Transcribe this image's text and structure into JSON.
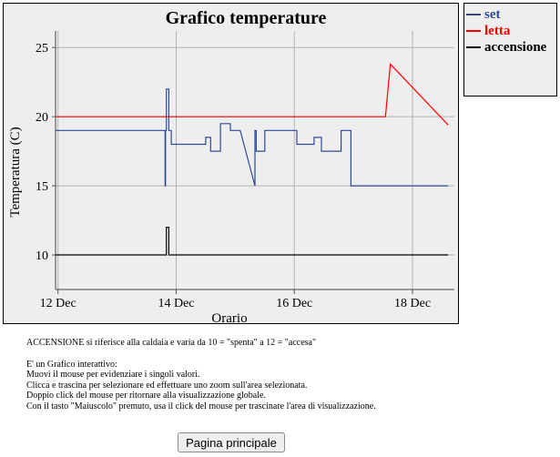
{
  "chart_data": {
    "type": "line",
    "title": "Grafico temperature",
    "xlabel": "Orario",
    "ylabel": "Temperatura (C)",
    "xlim": [
      "2021-12-11T23:00",
      "2021-12-18T17:00"
    ],
    "ylim": [
      7.5,
      26.2
    ],
    "x_ticks": [
      "12 Dec",
      "14 Dec",
      "16 Dec",
      "18 Dec"
    ],
    "y_ticks": [
      10,
      15,
      20,
      25
    ],
    "grid": true,
    "legend_position": "right",
    "series": [
      {
        "name": "set",
        "color": "#2c4b94",
        "points": [
          [
            "2021-12-11T23:00",
            19
          ],
          [
            "2021-12-13T19:30",
            19
          ],
          [
            "2021-12-13T19:30",
            15
          ],
          [
            "2021-12-13T19:40",
            15
          ],
          [
            "2021-12-13T19:40",
            19
          ],
          [
            "2021-12-13T20:00",
            19
          ],
          [
            "2021-12-13T20:00",
            22
          ],
          [
            "2021-12-13T21:00",
            22
          ],
          [
            "2021-12-13T21:00",
            19
          ],
          [
            "2021-12-13T22:00",
            19
          ],
          [
            "2021-12-13T22:00",
            18
          ],
          [
            "2021-12-14T12:00",
            18
          ],
          [
            "2021-12-14T12:00",
            18.5
          ],
          [
            "2021-12-14T14:00",
            18.5
          ],
          [
            "2021-12-14T14:00",
            17.5
          ],
          [
            "2021-12-14T18:00",
            17.5
          ],
          [
            "2021-12-14T18:00",
            19.5
          ],
          [
            "2021-12-14T22:00",
            19.5
          ],
          [
            "2021-12-14T22:00",
            19
          ],
          [
            "2021-12-15T02:00",
            19
          ],
          [
            "2021-12-15T08:00",
            15
          ],
          [
            "2021-12-15T08:00",
            19
          ],
          [
            "2021-12-15T08:30",
            19
          ],
          [
            "2021-12-15T08:30",
            17.5
          ],
          [
            "2021-12-15T12:00",
            17.5
          ],
          [
            "2021-12-15T12:00",
            19
          ],
          [
            "2021-12-16T01:00",
            19
          ],
          [
            "2021-12-16T01:00",
            18
          ],
          [
            "2021-12-16T08:00",
            18
          ],
          [
            "2021-12-16T08:00",
            18.5
          ],
          [
            "2021-12-16T11:00",
            18.5
          ],
          [
            "2021-12-16T11:00",
            17.5
          ],
          [
            "2021-12-16T19:00",
            17.5
          ],
          [
            "2021-12-16T19:00",
            19
          ],
          [
            "2021-12-16T23:00",
            19
          ],
          [
            "2021-12-16T23:00",
            15
          ],
          [
            "2021-12-18T14:30",
            15
          ]
        ]
      },
      {
        "name": "letta",
        "color": "#ff0000",
        "points": [
          [
            "2021-12-11T23:00",
            20
          ],
          [
            "2021-12-17T13:00",
            20
          ],
          [
            "2021-12-17T15:00",
            23.8
          ],
          [
            "2021-12-18T14:30",
            19.4
          ]
        ]
      },
      {
        "name": "accensione",
        "color": "#000000",
        "points": [
          [
            "2021-12-11T23:00",
            10
          ],
          [
            "2021-12-13T20:00",
            10
          ],
          [
            "2021-12-13T20:00",
            12
          ],
          [
            "2021-12-13T21:00",
            12
          ],
          [
            "2021-12-13T21:00",
            10
          ],
          [
            "2021-12-18T14:30",
            10
          ]
        ]
      }
    ]
  },
  "notes": {
    "line1": "ACCENSIONE si riferisce alla caldaia e varia da 10 = \"spenta\" a 12 = \"accesa\"",
    "line2": "E' un Grafico interattivo:",
    "line3": "Muovi il mouse per evidenziare i singoli valori.",
    "line4": "Clicca e trascina per selezionare ed effettuare uno zoom sull'area selezionata.",
    "line5": "Doppio click del mouse per ritornare alla visualizzazione globale.",
    "line6": "Con il tasto \"Maiuscolo\" premuto, usa il click del mouse per trascinare l'area di visualizzazione."
  },
  "home_button": {
    "label": "Pagina principale"
  }
}
